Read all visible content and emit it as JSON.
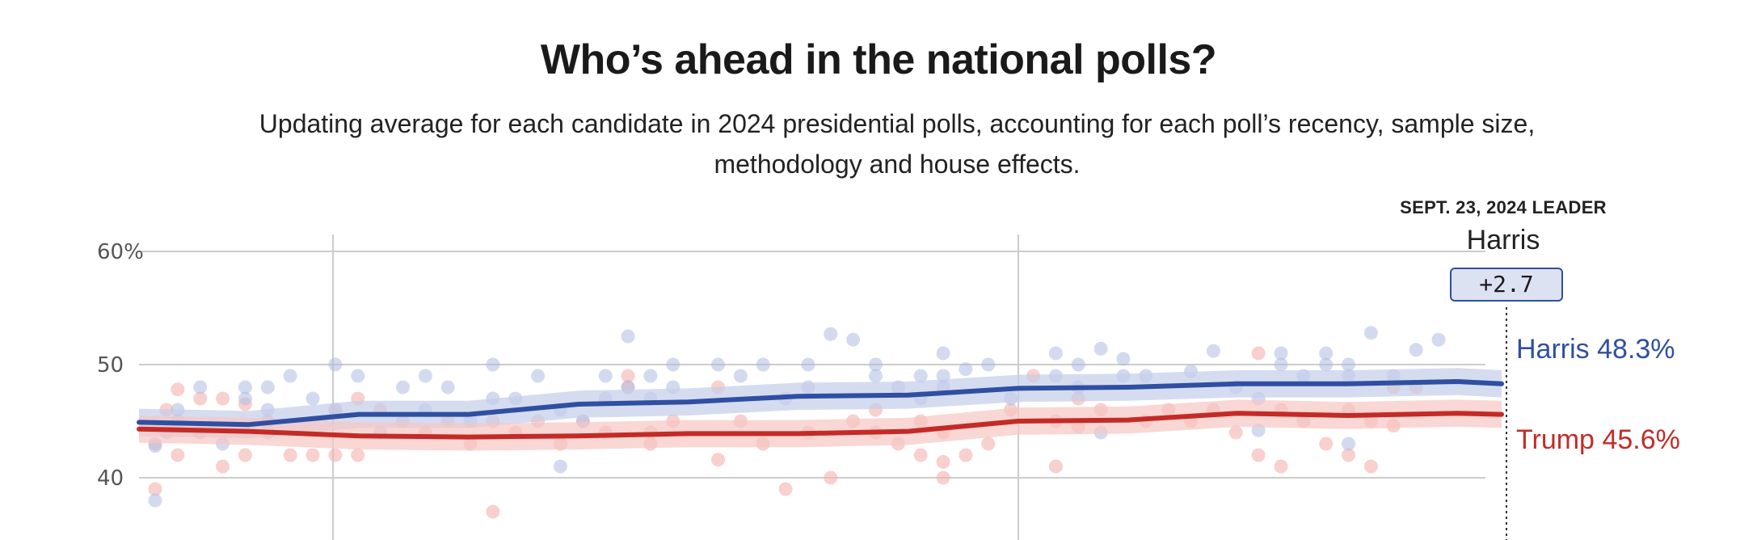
{
  "title": "Who’s ahead in the national polls?",
  "subtitle": "Updating average for each candidate in 2024 presidential polls, accounting for each poll’s recency, sample size, methodology and house effects.",
  "leader": {
    "label": "SEPT. 23, 2024 LEADER",
    "name": "Harris",
    "margin": "+2.7"
  },
  "end_labels": {
    "harris_name": "Harris",
    "harris_value": "48.3%",
    "trump_name": "Trump",
    "trump_value": "45.6%"
  },
  "colors": {
    "harris": "#2f4fa2",
    "trump": "#c42b26",
    "harris_dots": "#aebbe4",
    "trump_dots": "#f3b1ad",
    "grid": "#cccccc"
  },
  "chart_data": {
    "type": "line",
    "title": "Who’s ahead in the national polls?",
    "ylim": [
      37,
      62
    ],
    "yticks": [
      {
        "value": 60,
        "label": "60%"
      },
      {
        "value": 50,
        "label": "50"
      },
      {
        "value": 40,
        "label": "40"
      }
    ],
    "x": [
      0,
      5,
      10,
      15,
      20,
      25,
      30,
      35,
      40,
      45,
      50,
      55,
      60,
      62
    ],
    "series": [
      {
        "name": "Harris",
        "values": [
          44.9,
          44.7,
          45.6,
          45.6,
          46.5,
          46.7,
          47.2,
          47.3,
          47.9,
          48.0,
          48.3,
          48.3,
          48.5,
          48.3
        ],
        "band": 1.2
      },
      {
        "name": "Trump",
        "values": [
          44.3,
          44.1,
          43.7,
          43.6,
          43.7,
          43.9,
          43.9,
          44.1,
          45.0,
          45.1,
          45.7,
          45.5,
          45.7,
          45.6
        ],
        "band": 1.2
      }
    ],
    "polls": {
      "harris_points": [
        [
          0,
          38
        ],
        [
          0,
          42.8
        ],
        [
          0.5,
          44
        ],
        [
          1,
          45
        ],
        [
          1,
          46
        ],
        [
          2,
          48
        ],
        [
          3,
          43
        ],
        [
          4,
          48
        ],
        [
          4,
          47
        ],
        [
          5,
          44
        ],
        [
          5,
          48
        ],
        [
          5,
          46
        ],
        [
          6,
          49
        ],
        [
          7,
          47
        ],
        [
          8,
          50
        ],
        [
          8,
          46
        ],
        [
          9,
          49
        ],
        [
          10,
          44
        ],
        [
          11,
          48
        ],
        [
          12,
          49
        ],
        [
          12,
          46
        ],
        [
          13,
          48
        ],
        [
          14,
          45
        ],
        [
          15,
          47
        ],
        [
          15,
          50
        ],
        [
          16,
          47
        ],
        [
          17,
          49
        ],
        [
          18,
          41
        ],
        [
          18,
          46
        ],
        [
          19,
          45
        ],
        [
          20,
          49
        ],
        [
          20,
          47
        ],
        [
          21,
          52.5
        ],
        [
          21,
          48
        ],
        [
          22,
          49
        ],
        [
          22,
          47
        ],
        [
          23,
          50
        ],
        [
          23,
          48
        ],
        [
          25,
          50
        ],
        [
          26,
          49
        ],
        [
          27,
          50
        ],
        [
          28,
          47
        ],
        [
          29,
          50
        ],
        [
          29,
          48
        ],
        [
          30,
          52.7
        ],
        [
          31,
          52.2
        ],
        [
          32,
          50
        ],
        [
          32,
          49
        ],
        [
          33,
          48
        ],
        [
          34,
          49
        ],
        [
          34,
          47
        ],
        [
          35,
          51
        ],
        [
          35,
          49
        ],
        [
          35,
          48
        ],
        [
          36,
          49.6
        ],
        [
          37,
          50
        ],
        [
          38,
          47
        ],
        [
          40,
          51
        ],
        [
          40,
          49
        ],
        [
          41,
          50
        ],
        [
          41,
          48
        ],
        [
          42,
          51.4
        ],
        [
          42,
          44
        ],
        [
          43,
          50.5
        ],
        [
          43,
          49
        ],
        [
          44,
          49
        ],
        [
          46,
          49.4
        ],
        [
          47,
          51.2
        ],
        [
          48,
          48
        ],
        [
          49,
          47
        ],
        [
          49,
          44.2
        ],
        [
          50,
          51
        ],
        [
          50,
          50
        ],
        [
          51,
          49
        ],
        [
          52,
          50
        ],
        [
          52,
          51
        ],
        [
          53,
          50
        ],
        [
          53,
          49
        ],
        [
          53,
          43
        ],
        [
          54,
          52.8
        ],
        [
          55,
          49
        ],
        [
          56,
          51.3
        ],
        [
          57,
          52.2
        ]
      ],
      "trump_points": [
        [
          0,
          39
        ],
        [
          0,
          43
        ],
        [
          0.5,
          46
        ],
        [
          1,
          47.8
        ],
        [
          1,
          42
        ],
        [
          2,
          47
        ],
        [
          2,
          44
        ],
        [
          3,
          47
        ],
        [
          3,
          41
        ],
        [
          4,
          46.5
        ],
        [
          4,
          42
        ],
        [
          5,
          45
        ],
        [
          6,
          42
        ],
        [
          7,
          42
        ],
        [
          8,
          46
        ],
        [
          8,
          42
        ],
        [
          9,
          47
        ],
        [
          9,
          42
        ],
        [
          10,
          46
        ],
        [
          11,
          45
        ],
        [
          12,
          44
        ],
        [
          13,
          45
        ],
        [
          14,
          43
        ],
        [
          15,
          45
        ],
        [
          15,
          37
        ],
        [
          16,
          44
        ],
        [
          17,
          45
        ],
        [
          18,
          43
        ],
        [
          19,
          45
        ],
        [
          20,
          44
        ],
        [
          21,
          49
        ],
        [
          21,
          48
        ],
        [
          22,
          44
        ],
        [
          22,
          43
        ],
        [
          23,
          45
        ],
        [
          25,
          48
        ],
        [
          25,
          41.6
        ],
        [
          26,
          45
        ],
        [
          27,
          43
        ],
        [
          28,
          39
        ],
        [
          29,
          44
        ],
        [
          30,
          40
        ],
        [
          31,
          45
        ],
        [
          32,
          46
        ],
        [
          32,
          44
        ],
        [
          33,
          43
        ],
        [
          34,
          45
        ],
        [
          34,
          42
        ],
        [
          35,
          44
        ],
        [
          35,
          41.4
        ],
        [
          35,
          40
        ],
        [
          36,
          42
        ],
        [
          37,
          43
        ],
        [
          38,
          46
        ],
        [
          39,
          49
        ],
        [
          40,
          45
        ],
        [
          40,
          41
        ],
        [
          41,
          47
        ],
        [
          41,
          44.5
        ],
        [
          42,
          46
        ],
        [
          44,
          45
        ],
        [
          45,
          46
        ],
        [
          46,
          45
        ],
        [
          47,
          46
        ],
        [
          48,
          44
        ],
        [
          49,
          51
        ],
        [
          49,
          42
        ],
        [
          50,
          46
        ],
        [
          50,
          41
        ],
        [
          51,
          45
        ],
        [
          52,
          43
        ],
        [
          53,
          46
        ],
        [
          53,
          42
        ],
        [
          54,
          45
        ],
        [
          54,
          41
        ],
        [
          55,
          48
        ],
        [
          55,
          44.6
        ],
        [
          56,
          48
        ]
      ]
    }
  }
}
